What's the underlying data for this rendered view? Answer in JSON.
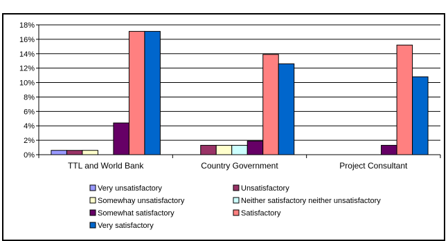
{
  "chart_data": {
    "type": "bar",
    "title": "",
    "xlabel": "",
    "ylabel": "",
    "categories": [
      "TTL and World Bank",
      "Country Government",
      "Project Consultant"
    ],
    "ylim": [
      0,
      18
    ],
    "yticks": [
      0,
      2,
      4,
      6,
      8,
      10,
      12,
      14,
      16,
      18
    ],
    "ytick_labels": [
      "0%",
      "2%",
      "4%",
      "6%",
      "8%",
      "10%",
      "12%",
      "14%",
      "16%",
      "18%"
    ],
    "value_unit": "percent",
    "grid": true,
    "legend_position": "bottom",
    "series": [
      {
        "name": "Very unsatisfactory",
        "color": "#9999ff",
        "values": [
          0.6,
          0,
          0
        ]
      },
      {
        "name": "Unsatisfactory",
        "color": "#993366",
        "values": [
          0.6,
          1.3,
          0
        ]
      },
      {
        "name": "Somewhay unsatisfactory",
        "color": "#ffffcc",
        "values": [
          0.6,
          1.3,
          0
        ]
      },
      {
        "name": "Neither satisfactory neither unsatisfactory",
        "color": "#ccffff",
        "values": [
          0,
          1.3,
          0
        ]
      },
      {
        "name": "Somewhat satisfactory",
        "color": "#660066",
        "values": [
          4.4,
          1.9,
          1.3
        ]
      },
      {
        "name": "Satisfactory",
        "color": "#ff8080",
        "values": [
          17.1,
          13.9,
          15.2
        ]
      },
      {
        "name": "Very satisfactory",
        "color": "#0066cc",
        "values": [
          17.1,
          12.6,
          10.8
        ]
      }
    ]
  }
}
